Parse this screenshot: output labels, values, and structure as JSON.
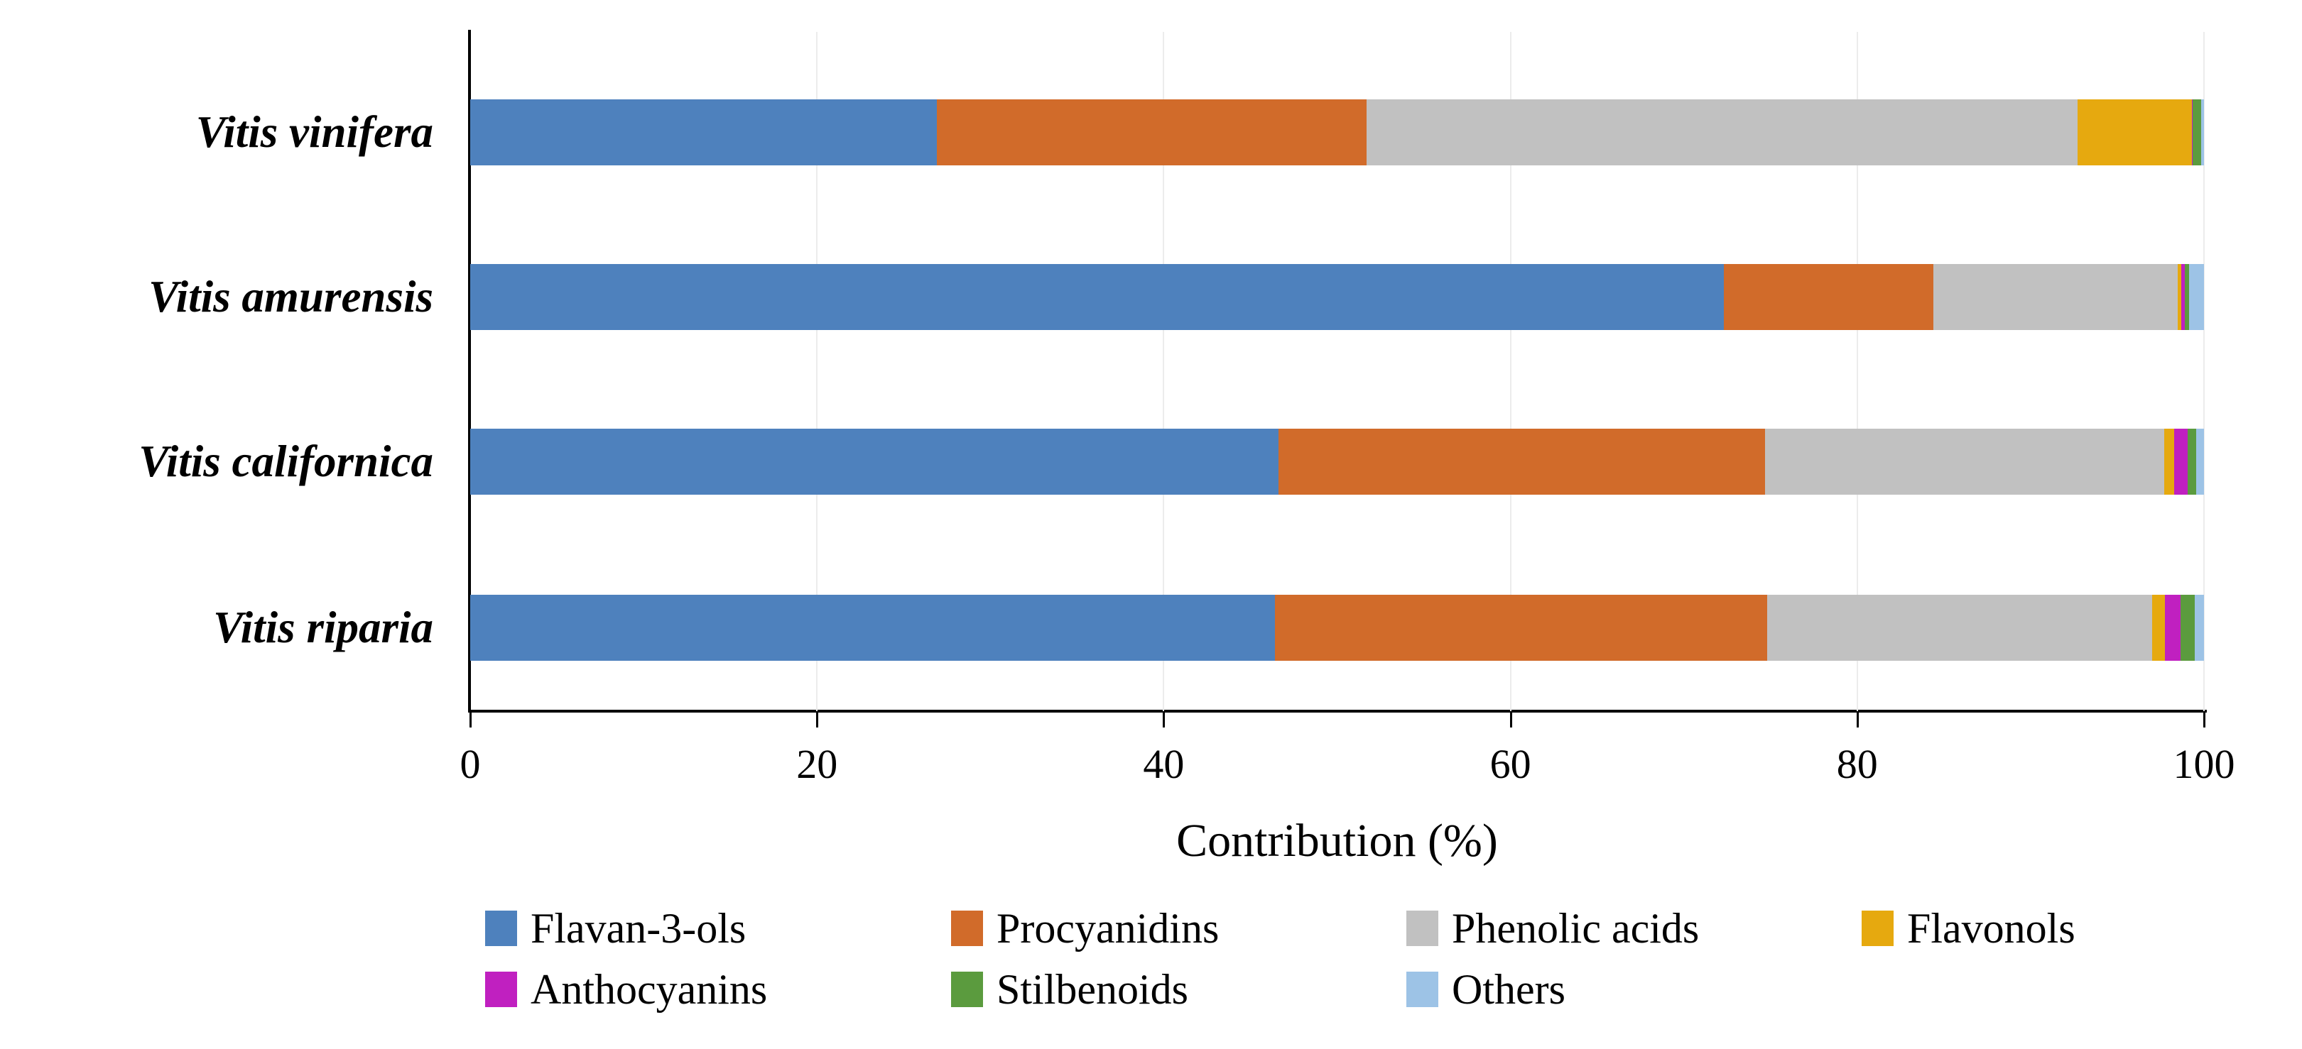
{
  "chart_data": {
    "type": "bar",
    "variant": "horizontal-stacked",
    "title": "",
    "xlabel": "Contribution (%)",
    "ylabel": "",
    "xlim": [
      0,
      100
    ],
    "x_ticks": [
      0,
      20,
      40,
      60,
      80,
      100
    ],
    "grid": "vertical-light-gray",
    "legend_position": "bottom",
    "categories": [
      "Vitis vinifera",
      "Vitis amurensis",
      "Vitis californica",
      "Vitis riparia"
    ],
    "series": [
      {
        "name": "Flavan-3-ols",
        "color": "#4E81BD",
        "values": [
          26.9,
          72.3,
          46.6,
          46.4
        ]
      },
      {
        "name": "Procyanidins",
        "color": "#D16B2A",
        "values": [
          24.8,
          12.1,
          28.1,
          28.4
        ]
      },
      {
        "name": "Phenolic acids",
        "color": "#C1C1C1",
        "values": [
          41.0,
          14.1,
          23.0,
          22.2
        ]
      },
      {
        "name": "Flavonols",
        "color": "#E6A90F",
        "values": [
          6.6,
          0.2,
          0.6,
          0.75
        ]
      },
      {
        "name": "Anthocyanins",
        "color": "#C020C0",
        "values": [
          0.05,
          0.2,
          0.75,
          0.9
        ]
      },
      {
        "name": "Stilbenoids",
        "color": "#5B9B3E",
        "values": [
          0.5,
          0.25,
          0.5,
          0.8
        ]
      },
      {
        "name": "Others",
        "color": "#9DC3E6",
        "values": [
          0.15,
          0.85,
          0.45,
          0.55
        ]
      }
    ]
  }
}
